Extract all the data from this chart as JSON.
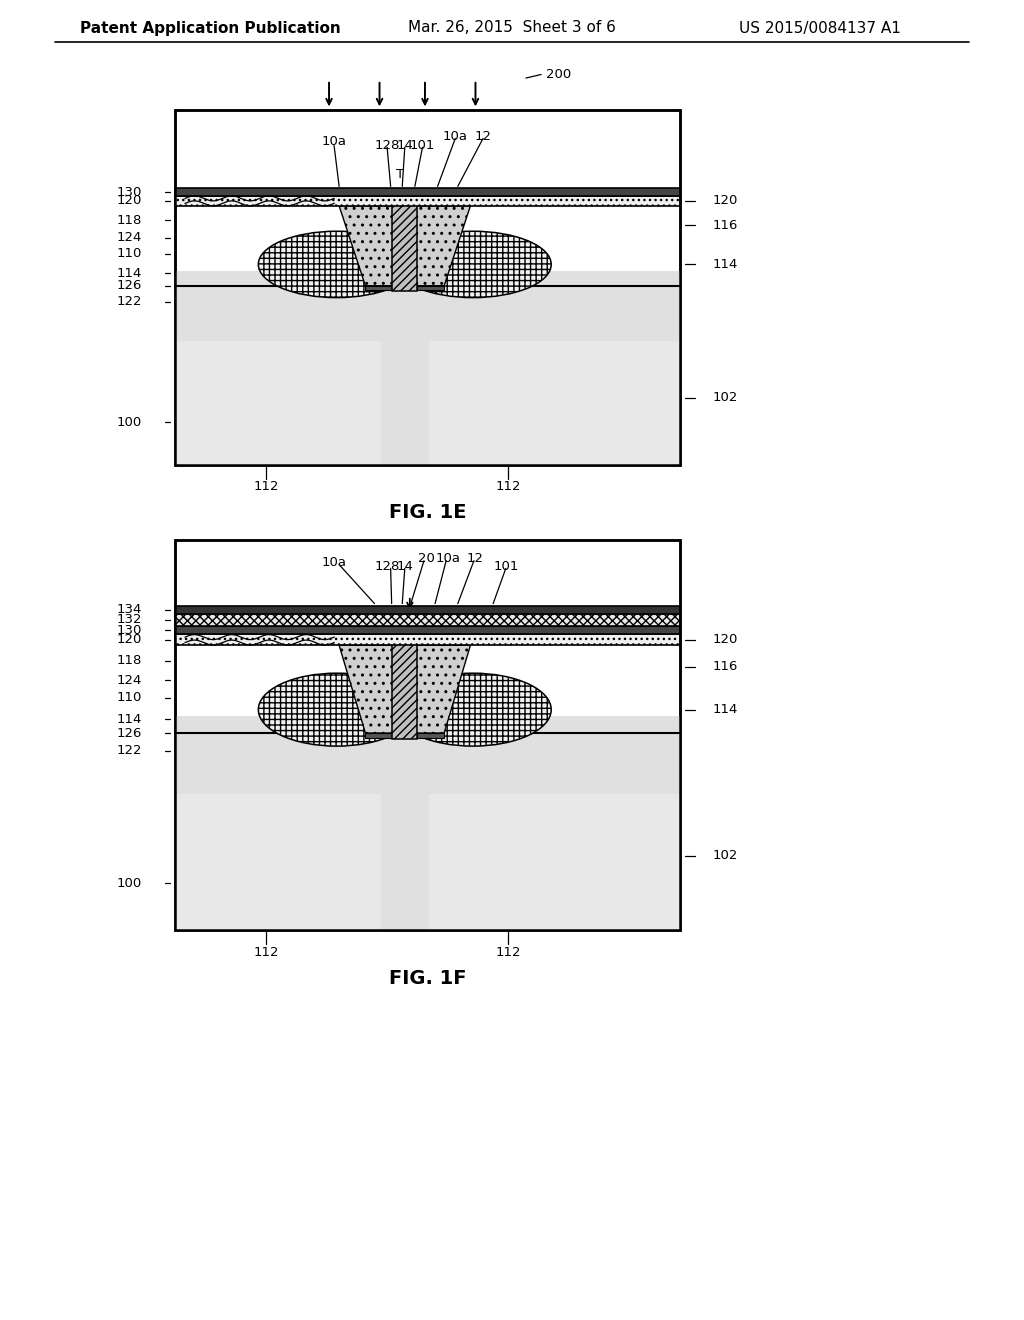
{
  "header_left": "Patent Application Publication",
  "header_mid": "Mar. 26, 2015  Sheet 3 of 6",
  "header_right": "US 2015/0084137 A1",
  "fig1e_title": "FIG. 1E",
  "fig1f_title": "FIG. 1F",
  "bg_color": "#ffffff",
  "line_color": "#000000"
}
